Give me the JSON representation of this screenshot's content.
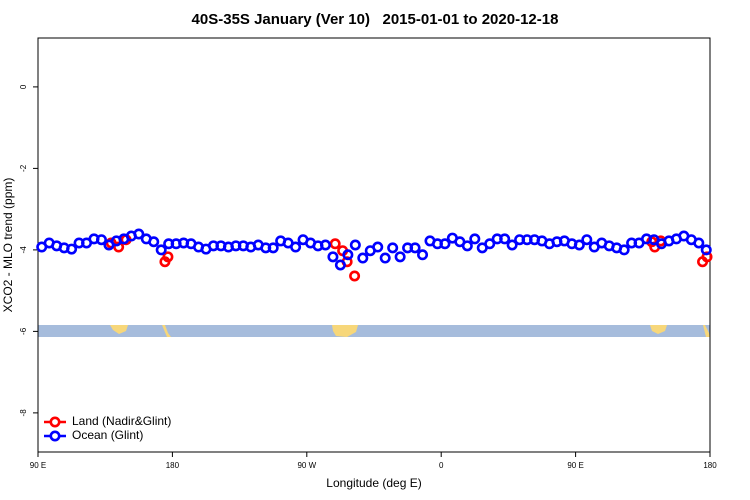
{
  "chart_data": {
    "type": "scatter",
    "title": "40S-35S January (Ver 10)   2015-01-01 to 2020-12-18",
    "x_label": "Longitude (deg E)",
    "y_label": "XCO2 - MLO trend (ppm)",
    "xlim": [
      90,
      540
    ],
    "xticks": [
      {
        "value": 90,
        "label": "90 E"
      },
      {
        "value": 180,
        "label": "180"
      },
      {
        "value": 270,
        "label": "90 W"
      },
      {
        "value": 360,
        "label": "0"
      },
      {
        "value": 450,
        "label": "90 E"
      },
      {
        "value": 540,
        "label": "180"
      }
    ],
    "ylim": [
      -8.96,
      1.2
    ],
    "yticks": [
      0,
      -2,
      -4,
      -6,
      -8
    ],
    "legend": "bottom-left",
    "series": [
      {
        "name": "Land (Nadir&Glint)",
        "color": "#ff0000",
        "x": [
          139,
          144,
          149,
          175,
          177,
          289,
          294,
          297,
          302,
          501,
          503,
          507,
          535,
          538
        ],
        "values": [
          -3.83,
          -3.93,
          -3.75,
          -4.29,
          -4.17,
          -3.85,
          -4.02,
          -4.29,
          -4.64,
          -3.8,
          -3.93,
          -3.78,
          -4.29,
          -4.17
        ]
      },
      {
        "name": "Ocean (Glint)",
        "color": "#0000ff",
        "x": [
          92.5,
          97.5,
          102.5,
          107.5,
          112.5,
          117.5,
          122.5,
          127.5,
          132.5,
          137.5,
          142.5,
          147.5,
          152.5,
          157.5,
          162.5,
          167.5,
          172.5,
          177.5,
          182.5,
          187.5,
          192.5,
          197.5,
          202.5,
          207.5,
          212.5,
          217.5,
          222.5,
          227.5,
          232.5,
          237.5,
          242.5,
          247.5,
          252.5,
          257.5,
          262.5,
          267.5,
          272.5,
          277.5,
          282.5,
          287.5,
          292.5,
          297.5,
          302.5,
          307.5,
          312.5,
          317.5,
          322.5,
          327.5,
          332.5,
          337.5,
          342.5,
          347.5,
          352.5,
          357.5,
          362.5,
          367.5,
          372.5,
          377.5,
          382.5,
          387.5,
          392.5,
          397.5,
          402.5,
          407.5,
          412.5,
          417.5,
          422.5,
          427.5,
          432.5,
          437.5,
          442.5,
          447.5,
          452.5,
          457.5,
          462.5,
          467.5,
          472.5,
          477.5,
          482.5,
          487.5,
          492.5,
          497.5,
          502.5,
          507.5,
          512.5,
          517.5,
          522.5,
          527.5,
          532.5,
          537.5
        ],
        "values": [
          -3.93,
          -3.83,
          -3.9,
          -3.95,
          -3.98,
          -3.83,
          -3.83,
          -3.73,
          -3.75,
          -3.88,
          -3.78,
          -3.73,
          -3.66,
          -3.61,
          -3.73,
          -3.8,
          -4.0,
          -3.85,
          -3.85,
          -3.83,
          -3.85,
          -3.93,
          -3.98,
          -3.9,
          -3.9,
          -3.93,
          -3.9,
          -3.9,
          -3.93,
          -3.88,
          -3.95,
          -3.95,
          -3.78,
          -3.83,
          -3.93,
          -3.75,
          -3.83,
          -3.9,
          -3.88,
          -4.17,
          -4.37,
          -4.12,
          -3.88,
          -4.2,
          -4.02,
          -3.93,
          -4.2,
          -3.95,
          -4.17,
          -3.95,
          -3.95,
          -4.12,
          -3.78,
          -3.85,
          -3.85,
          -3.71,
          -3.8,
          -3.9,
          -3.73,
          -3.95,
          -3.85,
          -3.73,
          -3.73,
          -3.88,
          -3.75,
          -3.75,
          -3.75,
          -3.78,
          -3.85,
          -3.8,
          -3.78,
          -3.85,
          -3.88,
          -3.75,
          -3.93,
          -3.83,
          -3.9,
          -3.95,
          -4.0,
          -3.83,
          -3.83,
          -3.73,
          -3.75,
          -3.85,
          -3.78,
          -3.73,
          -3.66,
          -3.75,
          -3.83,
          -4.0
        ]
      }
    ]
  }
}
